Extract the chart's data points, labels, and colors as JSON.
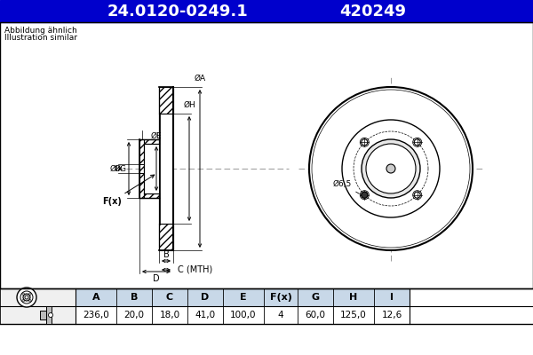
{
  "title_part1": "24.0120-0249.1",
  "title_part2": "420249",
  "title_bg": "#0000cc",
  "title_fg": "#ffffff",
  "bg_color": "#ffffff",
  "subtitle1": "Abbildung ähnlich",
  "subtitle2": "Illustration similar",
  "table_headers": [
    "A",
    "B",
    "C",
    "D",
    "E",
    "F(x)",
    "G",
    "H",
    "I"
  ],
  "table_values": [
    "236,0",
    "20,0",
    "18,0",
    "41,0",
    "100,0",
    "4",
    "60,0",
    "125,0",
    "12,6"
  ],
  "table_header_bg": "#c8d8e8",
  "table_value_bg": "#ffffff",
  "line_color": "#000000",
  "dim_line_color": "#000000",
  "center_line_color": "#888888"
}
